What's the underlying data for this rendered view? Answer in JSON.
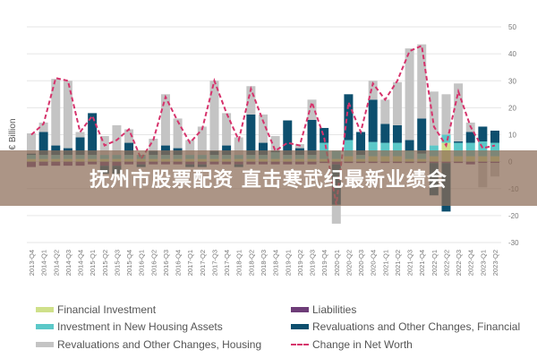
{
  "chart_data": {
    "type": "bar",
    "stacked": true,
    "title": "",
    "ylabel": "€ Billion",
    "xlabel": "",
    "ylim": [
      -30,
      50
    ],
    "yticks": [
      50,
      40,
      30,
      20,
      10,
      0,
      -10,
      -20,
      -30
    ],
    "grid": true,
    "legend_position": "bottom",
    "categories": [
      "2013-Q4",
      "2014-Q1",
      "2014-Q2",
      "2014-Q3",
      "2014-Q4",
      "2015-Q1",
      "2015-Q2",
      "2015-Q3",
      "2015-Q4",
      "2016-Q1",
      "2016-Q2",
      "2016-Q3",
      "2016-Q4",
      "2017-Q1",
      "2017-Q2",
      "2017-Q3",
      "2017-Q4",
      "2018-Q1",
      "2018-Q2",
      "2018-Q3",
      "2018-Q4",
      "2019-Q1",
      "2019-Q2",
      "2019-Q3",
      "2019-Q4",
      "2020-Q1",
      "2020-Q2",
      "2020-Q3",
      "2020-Q4",
      "2021-Q1",
      "2021-Q2",
      "2021-Q3",
      "2021-Q4",
      "2022-Q1",
      "2022-Q2",
      "2022-Q3",
      "2022-Q4",
      "2023-Q1",
      "2023-Q2"
    ],
    "series": [
      {
        "name": "Financial Investment",
        "kind": "bar",
        "color": "#cfe08a",
        "values": [
          1,
          1,
          1,
          1,
          1,
          1,
          1,
          1,
          1,
          1,
          1,
          1,
          1,
          1,
          1,
          1,
          1,
          1,
          1,
          1,
          1,
          1,
          1,
          1,
          1,
          1,
          2,
          1,
          2,
          2,
          2,
          1,
          1,
          2,
          7,
          2,
          2,
          2,
          2
        ]
      },
      {
        "name": "Investment in New Housing Assets",
        "kind": "bar",
        "color": "#5bc8c8",
        "values": [
          1.5,
          1.5,
          1.5,
          1.5,
          1.5,
          1.5,
          1.5,
          1.5,
          1.5,
          1.5,
          1.5,
          1.5,
          1.5,
          1.5,
          1.5,
          1.5,
          1.5,
          1.5,
          1.5,
          1.5,
          2.5,
          1.5,
          1.5,
          1.5,
          6,
          3,
          6,
          1.5,
          5.3,
          5,
          5,
          3,
          2,
          4,
          3,
          5,
          5,
          5.5,
          5
        ]
      },
      {
        "name": "Liabilities",
        "kind": "bar",
        "color": "#6e3d78",
        "values": [
          -2,
          -1.5,
          -1.5,
          -1.5,
          -1.5,
          -1,
          -1.5,
          -1.5,
          -1,
          -1,
          -1,
          -1,
          -1,
          -1,
          -1,
          -1,
          -1,
          -1,
          -1,
          -1,
          -1,
          -1,
          -1,
          -1,
          -0.5,
          -1,
          -0.5,
          -0.5,
          -0.5,
          -0.5,
          -0.5,
          -0.5,
          -0.5,
          -0.5,
          -0.5,
          -0.5,
          -1,
          -0.5,
          -0.5
        ]
      },
      {
        "name": "Revaluations and Other Changes, Financial",
        "kind": "bar",
        "color": "#0d4f6e",
        "values": [
          0.5,
          8.5,
          3.5,
          2.5,
          6.5,
          15.5,
          -3,
          -3,
          4.5,
          -1,
          1.5,
          3.5,
          2.5,
          -1,
          -1,
          1.5,
          3.5,
          -1,
          15,
          4.5,
          0.5,
          12.8,
          2.5,
          13,
          5.5,
          -15,
          17,
          8.5,
          15.7,
          7,
          6.5,
          4,
          13,
          -12,
          -18,
          0.5,
          4,
          5.5,
          4.5
        ]
      },
      {
        "name": "Revaluations and Other Changes, Housing",
        "kind": "bar",
        "color": "#c4c4c4",
        "values": [
          7.5,
          3.5,
          24.7,
          25,
          2,
          0,
          7,
          11,
          5,
          0,
          4.5,
          19,
          11,
          5.5,
          10.5,
          26,
          12,
          6.5,
          10.5,
          10.5,
          5.5,
          0,
          1.5,
          7.5,
          0,
          -7,
          0,
          0,
          7,
          9,
          16,
          34,
          27.5,
          20,
          15,
          21.5,
          3.5,
          -9,
          -5
        ]
      },
      {
        "name": "Change in Net Worth",
        "kind": "line",
        "color": "#d6336c",
        "values": [
          10,
          14,
          31,
          30,
          11,
          17,
          6,
          8,
          12,
          1,
          8,
          24,
          15,
          7,
          12,
          30,
          18,
          8,
          27,
          15,
          4,
          7,
          6,
          22,
          9,
          -16,
          22,
          11,
          29,
          23,
          30,
          41,
          43,
          13,
          6,
          26,
          13,
          5,
          6
        ]
      }
    ]
  },
  "banner": {
    "text": "抚州市股票配资 直击寒武纪最新业绩会"
  }
}
